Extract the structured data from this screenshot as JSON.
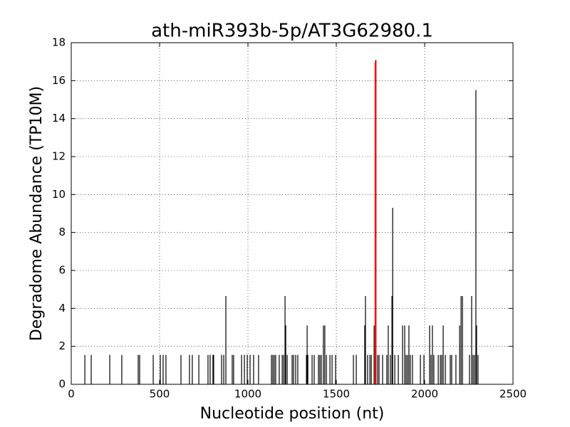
{
  "chart_data": {
    "type": "vlines",
    "title": "ath-miR393b-5p/AT3G62980.1",
    "x_label": "Nucleotide position (nt)",
    "y_label": "Degradome Abundance (TP10M)",
    "xlim": [
      0,
      2500
    ],
    "xticks": [
      0,
      500,
      1000,
      1500,
      2000,
      2500
    ],
    "ylim": [
      0,
      18
    ],
    "yticks": [
      0,
      2,
      4,
      6,
      8,
      10,
      12,
      14,
      16,
      18
    ],
    "grid": true,
    "series": [
      {
        "color": "#000000",
        "x": [
          77,
          113,
          218,
          286,
          379,
          387,
          464,
          504,
          520,
          536,
          621,
          669,
          685,
          722,
          774,
          786,
          802,
          806,
          851,
          863,
          875,
          911,
          919,
          964,
          980,
          996,
          1012,
          1032,
          1060,
          1133,
          1141,
          1149,
          1157,
          1177,
          1194,
          1202,
          1210,
          1214,
          1222,
          1250,
          1258,
          1270,
          1282,
          1331,
          1335,
          1339,
          1363,
          1375,
          1399,
          1407,
          1415,
          1427,
          1435,
          1444,
          1464,
          1476,
          1496,
          1597,
          1613,
          1661,
          1665,
          1677,
          1690,
          1698,
          1714,
          1724,
          1734,
          1742,
          1762,
          1786,
          1794,
          1806,
          1815,
          1819,
          1831,
          1851,
          1875,
          1887,
          1895,
          1903,
          1911,
          1919,
          1931,
          1976,
          1996,
          2028,
          2036,
          2044,
          2052,
          2077,
          2089,
          2097,
          2105,
          2117,
          2145,
          2153,
          2177,
          2198,
          2206,
          2214,
          2254,
          2266,
          2274,
          2282,
          2290,
          2294,
          2302
        ],
        "values": [
          1.55,
          1.55,
          1.55,
          1.55,
          1.55,
          1.55,
          1.55,
          1.55,
          1.55,
          1.55,
          1.55,
          1.55,
          1.55,
          1.55,
          1.55,
          1.55,
          1.55,
          1.55,
          1.55,
          1.55,
          4.65,
          1.55,
          1.55,
          1.55,
          1.55,
          1.55,
          1.55,
          1.55,
          1.55,
          1.55,
          1.55,
          1.55,
          1.55,
          1.55,
          1.55,
          1.55,
          4.65,
          3.1,
          1.55,
          1.55,
          1.55,
          1.55,
          1.55,
          1.55,
          3.1,
          1.55,
          1.55,
          1.55,
          1.55,
          1.55,
          1.55,
          3.1,
          3.1,
          1.55,
          1.55,
          1.55,
          1.55,
          1.55,
          1.55,
          3.1,
          4.65,
          1.55,
          1.55,
          1.55,
          3.1,
          17.1,
          1.55,
          1.55,
          1.55,
          1.55,
          3.1,
          1.55,
          4.65,
          9.3,
          1.55,
          1.55,
          3.1,
          3.1,
          1.55,
          1.55,
          3.1,
          1.55,
          1.55,
          1.55,
          1.55,
          3.1,
          1.55,
          3.1,
          1.55,
          1.55,
          1.55,
          1.55,
          3.1,
          1.55,
          1.55,
          1.55,
          1.55,
          3.1,
          4.65,
          4.65,
          1.55,
          4.65,
          1.55,
          1.55,
          15.5,
          3.1,
          1.55
        ]
      },
      {
        "color": "#ff0000",
        "x": [
          1722
        ],
        "values": [
          17.0
        ]
      }
    ]
  }
}
